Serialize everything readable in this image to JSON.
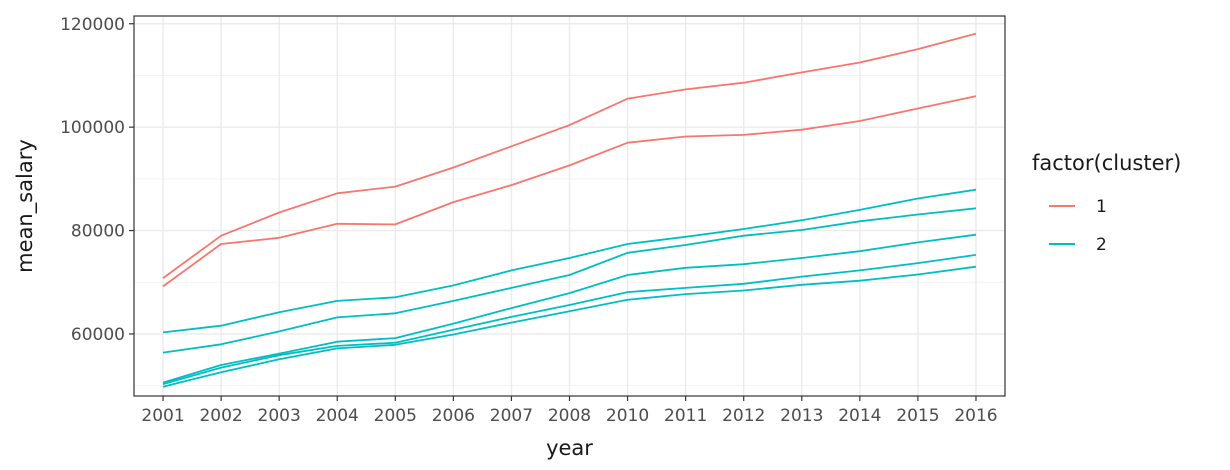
{
  "chart_data": {
    "type": "line",
    "title": "",
    "xlabel": "year",
    "ylabel": "mean_salary",
    "categories": [
      "2001",
      "2002",
      "2003",
      "2004",
      "2005",
      "2006",
      "2007",
      "2008",
      "2010",
      "2011",
      "2012",
      "2013",
      "2014",
      "2015",
      "2016"
    ],
    "ylim": [
      48000,
      121500
    ],
    "yticks": [
      60000,
      80000,
      100000,
      120000
    ],
    "ytick_labels": [
      "60000",
      "80000",
      "100000",
      "120000"
    ],
    "grid": true,
    "legend": {
      "title": "factor(cluster)",
      "placement": "right",
      "entries": [
        {
          "label": "1",
          "color": "#F8766D"
        },
        {
          "label": "2",
          "color": "#00BFC4"
        }
      ]
    },
    "series": [
      {
        "cluster": "1",
        "color": "#F8766D",
        "values": [
          70800,
          79000,
          83500,
          87200,
          88500,
          92200,
          96300,
          100400,
          105500,
          107300,
          108600,
          110600,
          112500,
          115100,
          118100
        ]
      },
      {
        "cluster": "1",
        "color": "#F8766D",
        "values": [
          69200,
          77400,
          78600,
          81300,
          81200,
          85500,
          88800,
          92600,
          97000,
          98200,
          98500,
          99500,
          101200,
          103600,
          106000
        ]
      },
      {
        "cluster": "2",
        "color": "#00BFC4",
        "values": [
          60300,
          61600,
          64200,
          66400,
          67100,
          69400,
          72300,
          74700,
          77400,
          78800,
          80300,
          82000,
          84000,
          86200,
          87900
        ]
      },
      {
        "cluster": "2",
        "color": "#00BFC4",
        "values": [
          56400,
          58000,
          60500,
          63200,
          64000,
          66400,
          68900,
          71400,
          75700,
          77200,
          79000,
          80100,
          81800,
          83100,
          84300
        ]
      },
      {
        "cluster": "2",
        "color": "#00BFC4",
        "values": [
          50600,
          54000,
          56200,
          58500,
          59200,
          62000,
          65000,
          67900,
          71400,
          72800,
          73500,
          74700,
          76000,
          77700,
          79200
        ]
      },
      {
        "cluster": "2",
        "color": "#00BFC4",
        "values": [
          50300,
          53500,
          55900,
          57700,
          58300,
          60800,
          63300,
          65600,
          68100,
          68900,
          69700,
          71100,
          72300,
          73700,
          75300
        ]
      },
      {
        "cluster": "2",
        "color": "#00BFC4",
        "values": [
          49800,
          52600,
          55100,
          57200,
          57900,
          59900,
          62200,
          64400,
          66600,
          67700,
          68400,
          69500,
          70300,
          71500,
          73000
        ]
      }
    ]
  }
}
